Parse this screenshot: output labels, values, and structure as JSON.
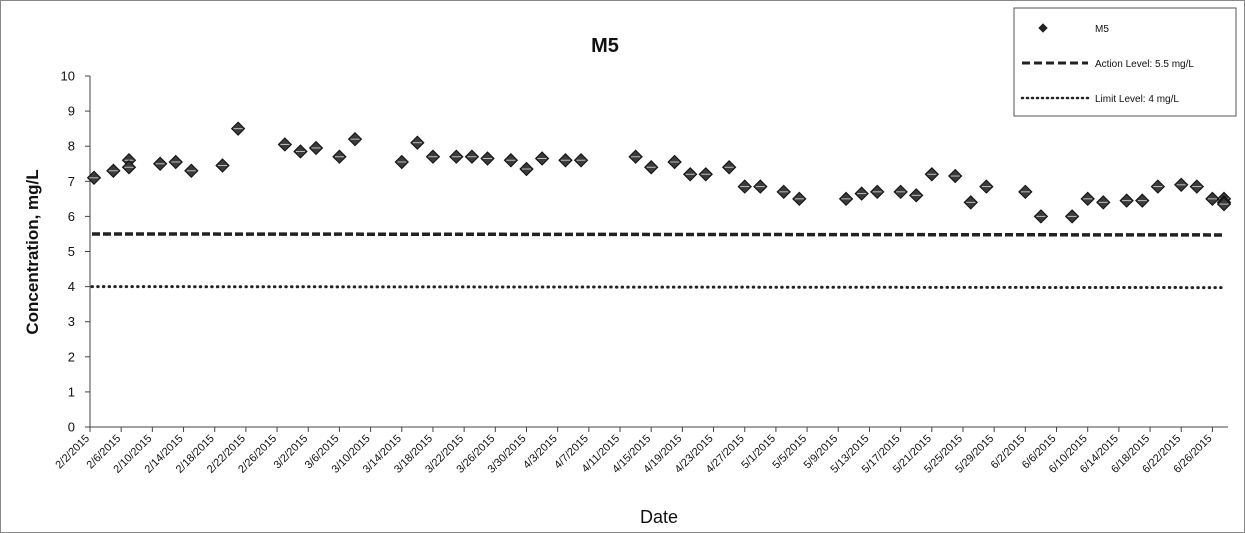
{
  "chart_data": {
    "type": "scatter",
    "title": "M5",
    "xlabel": "Date",
    "ylabel": "Concentration, mg/L",
    "ylim": [
      0,
      10
    ],
    "yticks": [
      0,
      1,
      2,
      3,
      4,
      5,
      6,
      7,
      8,
      9,
      10
    ],
    "xlim": [
      "2015-02-02",
      "2015-06-28"
    ],
    "xticks": [
      "2/2/2015",
      "2/6/2015",
      "2/10/2015",
      "2/14/2015",
      "2/18/2015",
      "2/22/2015",
      "2/26/2015",
      "3/2/2015",
      "3/6/2015",
      "3/10/2015",
      "3/14/2015",
      "3/18/2015",
      "3/22/2015",
      "3/26/2015",
      "3/30/2015",
      "4/3/2015",
      "4/7/2015",
      "4/11/2015",
      "4/15/2015",
      "4/19/2015",
      "4/23/2015",
      "4/27/2015",
      "5/1/2015",
      "5/5/2015",
      "5/9/2015",
      "5/13/2015",
      "5/17/2015",
      "5/21/2015",
      "5/25/2015",
      "5/29/2015",
      "6/2/2015",
      "6/6/2015",
      "6/10/2015",
      "6/14/2015",
      "6/18/2015",
      "6/22/2015",
      "6/26/2015"
    ],
    "grid": false,
    "legend_position": "top-right",
    "series": [
      {
        "name": "M5",
        "marker": "diamond",
        "color": "#333333",
        "points": [
          [
            "2015-02-02",
            7.1
          ],
          [
            "2015-02-05",
            7.3
          ],
          [
            "2015-02-07",
            7.6
          ],
          [
            "2015-02-07",
            7.4
          ],
          [
            "2015-02-11",
            7.5
          ],
          [
            "2015-02-13",
            7.55
          ],
          [
            "2015-02-15",
            7.3
          ],
          [
            "2015-02-19",
            7.45
          ],
          [
            "2015-02-21",
            8.5
          ],
          [
            "2015-02-27",
            8.05
          ],
          [
            "2015-03-01",
            7.85
          ],
          [
            "2015-03-03",
            7.95
          ],
          [
            "2015-03-06",
            7.7
          ],
          [
            "2015-03-08",
            8.2
          ],
          [
            "2015-03-14",
            7.55
          ],
          [
            "2015-03-16",
            8.1
          ],
          [
            "2015-03-18",
            7.7
          ],
          [
            "2015-03-21",
            7.7
          ],
          [
            "2015-03-23",
            7.7
          ],
          [
            "2015-03-25",
            7.65
          ],
          [
            "2015-03-28",
            7.6
          ],
          [
            "2015-03-30",
            7.35
          ],
          [
            "2015-04-01",
            7.65
          ],
          [
            "2015-04-04",
            7.6
          ],
          [
            "2015-04-06",
            7.6
          ],
          [
            "2015-04-13",
            7.7
          ],
          [
            "2015-04-15",
            7.4
          ],
          [
            "2015-04-18",
            7.55
          ],
          [
            "2015-04-20",
            7.2
          ],
          [
            "2015-04-22",
            7.2
          ],
          [
            "2015-04-25",
            7.4
          ],
          [
            "2015-04-27",
            6.85
          ],
          [
            "2015-04-29",
            6.85
          ],
          [
            "2015-05-02",
            6.7
          ],
          [
            "2015-05-04",
            6.5
          ],
          [
            "2015-05-10",
            6.5
          ],
          [
            "2015-05-12",
            6.65
          ],
          [
            "2015-05-14",
            6.7
          ],
          [
            "2015-05-17",
            6.7
          ],
          [
            "2015-05-19",
            6.6
          ],
          [
            "2015-05-21",
            7.2
          ],
          [
            "2015-05-24",
            7.15
          ],
          [
            "2015-05-26",
            6.4
          ],
          [
            "2015-05-28",
            6.85
          ],
          [
            "2015-06-02",
            6.7
          ],
          [
            "2015-06-04",
            6.0
          ],
          [
            "2015-06-08",
            6.0
          ],
          [
            "2015-06-10",
            6.5
          ],
          [
            "2015-06-12",
            6.4
          ],
          [
            "2015-06-15",
            6.45
          ],
          [
            "2015-06-17",
            6.45
          ],
          [
            "2015-06-19",
            6.85
          ],
          [
            "2015-06-22",
            6.9
          ],
          [
            "2015-06-24",
            6.85
          ],
          [
            "2015-06-26",
            6.5
          ],
          [
            "2015-06-29",
            6.5
          ],
          [
            "2015-07-01",
            6.4
          ],
          [
            "2015-07-03",
            6.35
          ]
        ]
      },
      {
        "name": "Action Level: 5.5 mg/L",
        "style": "dashed",
        "color": "#222222",
        "value": 5.5
      },
      {
        "name": "Limit Level: 4 mg/L",
        "style": "dotted",
        "color": "#222222",
        "value": 4
      }
    ]
  }
}
